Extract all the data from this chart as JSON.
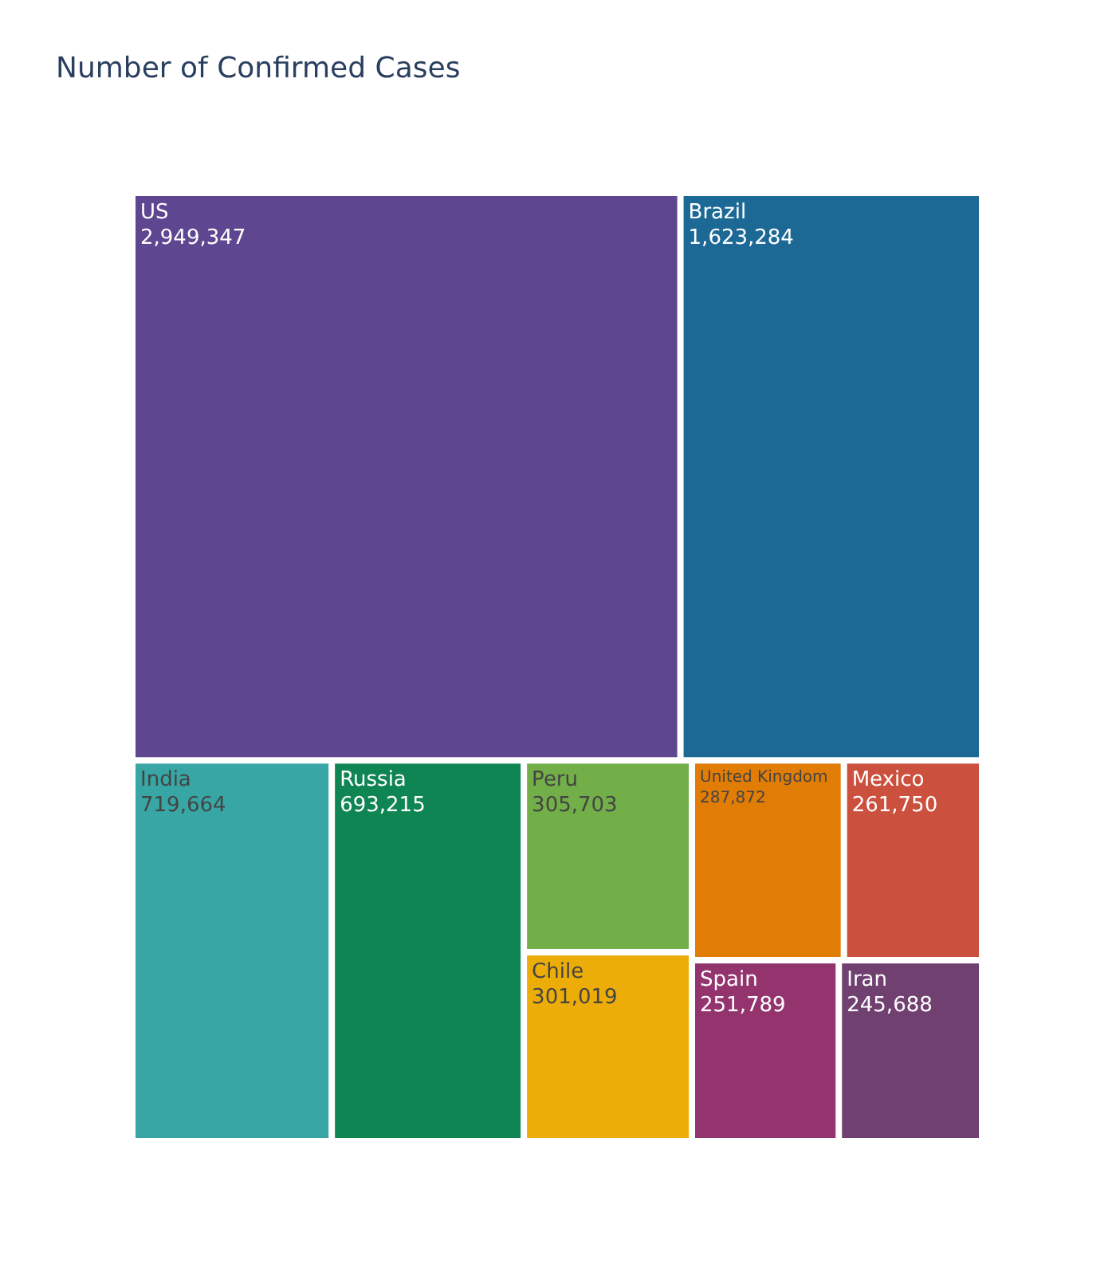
{
  "chart_data": {
    "type": "other",
    "title": "Number of Confirmed Cases",
    "categories": [
      "US",
      "Brazil",
      "India",
      "Russia",
      "Peru",
      "Chile",
      "United Kingdom",
      "Mexico",
      "Spain",
      "Iran"
    ],
    "values": [
      2949347,
      1623284,
      719664,
      693215,
      305703,
      301019,
      287872,
      261750,
      251789,
      245688
    ],
    "colors": [
      "#5f4690",
      "#1d6996",
      "#38a6a5",
      "#0f8554",
      "#73af48",
      "#edad08",
      "#e17c05",
      "#cc503e",
      "#94346e",
      "#6f4070"
    ],
    "value_labels": [
      "2,949,347",
      "1,623,284",
      "719,664",
      "693,215",
      "305,703",
      "301,019",
      "287,872",
      "261,750",
      "251,789",
      "245,688"
    ]
  }
}
